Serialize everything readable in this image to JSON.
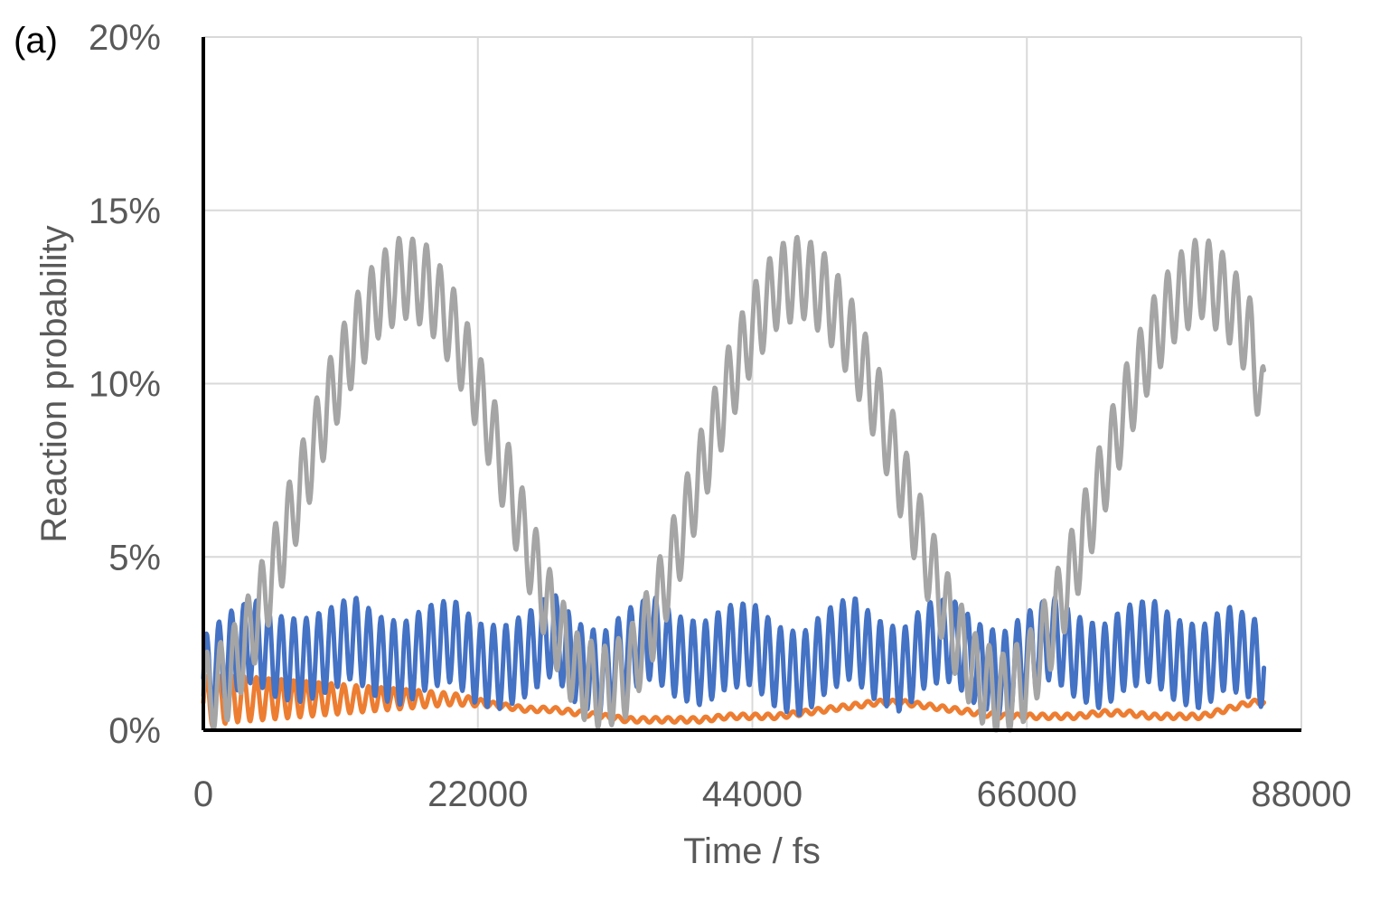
{
  "panel_label": "(a)",
  "chart_data": {
    "type": "line",
    "title": "",
    "xlabel": "Time / fs",
    "ylabel": "Reaction probability",
    "xlim": [
      0,
      88000
    ],
    "ylim": [
      0,
      0.2
    ],
    "x_ticks": [
      0,
      22000,
      44000,
      66000,
      88000
    ],
    "x_tick_labels": [
      "0",
      "22000",
      "44000",
      "66000",
      "88000"
    ],
    "y_ticks": [
      0,
      0.05,
      0.1,
      0.15,
      0.2
    ],
    "y_tick_labels": [
      "0%",
      "5%",
      "10%",
      "15%",
      "20%"
    ],
    "grid": true,
    "legend": "none",
    "series": [
      {
        "color": "#4472C4",
        "x": [
          0,
          2000,
          4000,
          6000,
          8000,
          10000,
          12000,
          14000,
          16000,
          18000,
          20000,
          22000,
          24000,
          26000,
          28000,
          30000,
          32000,
          34000,
          36000,
          38000,
          40000,
          42000,
          44000,
          46000,
          48000,
          50000,
          52000,
          54000,
          56000,
          58000,
          60000,
          62000,
          64000,
          66000,
          68000,
          70000,
          72000,
          74000,
          76000,
          78000,
          80000,
          82000,
          84000,
          85000
        ],
        "y": [
          0.015,
          0.022,
          0.026,
          0.021,
          0.02,
          0.023,
          0.027,
          0.021,
          0.019,
          0.024,
          0.026,
          0.019,
          0.018,
          0.022,
          0.028,
          0.019,
          0.016,
          0.023,
          0.027,
          0.021,
          0.019,
          0.024,
          0.025,
          0.018,
          0.016,
          0.023,
          0.027,
          0.02,
          0.017,
          0.025,
          0.026,
          0.019,
          0.016,
          0.022,
          0.027,
          0.021,
          0.018,
          0.024,
          0.026,
          0.02,
          0.018,
          0.024,
          0.021,
          0.018
        ]
      },
      {
        "color": "#ED7D31",
        "x": [
          0,
          2000,
          4000,
          6000,
          8000,
          10000,
          12000,
          14000,
          16000,
          18000,
          20000,
          22000,
          24000,
          26000,
          28000,
          30000,
          32000,
          34000,
          36000,
          38000,
          40000,
          42000,
          44000,
          46000,
          48000,
          50000,
          52000,
          54000,
          56000,
          58000,
          60000,
          62000,
          64000,
          66000,
          68000,
          70000,
          72000,
          74000,
          76000,
          78000,
          80000,
          82000,
          84000,
          85000
        ],
        "y": [
          0.008,
          0.009,
          0.009,
          0.009,
          0.009,
          0.009,
          0.009,
          0.009,
          0.009,
          0.009,
          0.009,
          0.008,
          0.007,
          0.006,
          0.006,
          0.005,
          0.004,
          0.003,
          0.003,
          0.003,
          0.003,
          0.004,
          0.004,
          0.004,
          0.005,
          0.006,
          0.007,
          0.008,
          0.008,
          0.007,
          0.006,
          0.005,
          0.004,
          0.004,
          0.004,
          0.004,
          0.005,
          0.005,
          0.004,
          0.004,
          0.004,
          0.006,
          0.008,
          0.008
        ]
      },
      {
        "color": "#A5A5A5",
        "x": [
          0,
          2000,
          4000,
          6000,
          8000,
          10000,
          12000,
          14000,
          16000,
          18000,
          20000,
          22000,
          24000,
          26000,
          28000,
          30000,
          32000,
          34000,
          36000,
          38000,
          40000,
          42000,
          44000,
          46000,
          48000,
          50000,
          52000,
          54000,
          56000,
          58000,
          60000,
          62000,
          64000,
          66000,
          68000,
          70000,
          72000,
          74000,
          76000,
          78000,
          80000,
          82000,
          84000,
          85000
        ],
        "y": [
          0.01,
          0.015,
          0.03,
          0.05,
          0.072,
          0.094,
          0.112,
          0.125,
          0.131,
          0.128,
          0.116,
          0.098,
          0.076,
          0.053,
          0.032,
          0.016,
          0.012,
          0.016,
          0.032,
          0.053,
          0.076,
          0.098,
          0.116,
          0.128,
          0.131,
          0.125,
          0.112,
          0.094,
          0.072,
          0.05,
          0.03,
          0.015,
          0.01,
          0.015,
          0.03,
          0.05,
          0.072,
          0.094,
          0.112,
          0.125,
          0.131,
          0.125,
          0.112,
          0.092
        ]
      }
    ]
  }
}
